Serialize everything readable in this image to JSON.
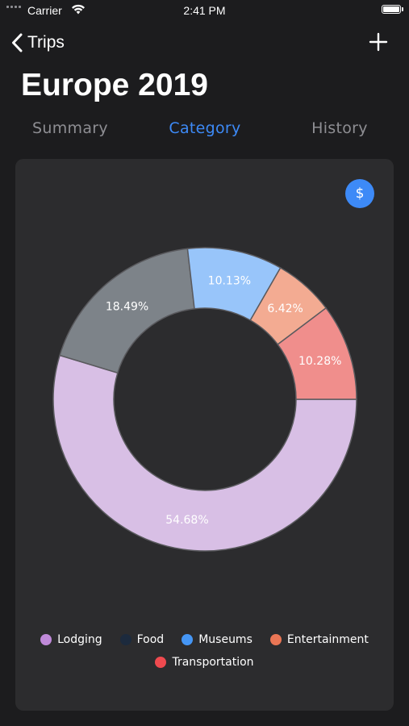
{
  "status_bar": {
    "carrier": "Carrier",
    "time": "2:41 PM"
  },
  "nav": {
    "back_label": "Trips",
    "add_icon": "plus-icon",
    "back_icon": "chevron-left-icon"
  },
  "page": {
    "title": "Europe 2019"
  },
  "tabs": [
    {
      "label": "Summary",
      "active": false
    },
    {
      "label": "Category",
      "active": true
    },
    {
      "label": "History",
      "active": false
    }
  ],
  "currency_button": {
    "label": "$"
  },
  "colors": {
    "background": "#1c1c1e",
    "card": "#2c2c2e",
    "accent": "#3d8af7"
  },
  "chart_data": {
    "type": "pie",
    "donut": true,
    "slices": [
      {
        "label": "Lodging",
        "value": 54.68,
        "display": "54.68%",
        "color": "#d8bfe5"
      },
      {
        "label": "Food",
        "value": 18.49,
        "display": "18.49%",
        "color": "#7d8389"
      },
      {
        "label": "Museums",
        "value": 10.13,
        "display": "10.13%",
        "color": "#98c5fa"
      },
      {
        "label": "Entertainment",
        "value": 6.42,
        "display": "6.42%",
        "color": "#f3ab92"
      },
      {
        "label": "Transportation",
        "value": 10.28,
        "display": "10.28%",
        "color": "#f08e8c"
      }
    ]
  },
  "legend": [
    {
      "label": "Lodging",
      "color": "#c08ad9"
    },
    {
      "label": "Food",
      "color": "#1c2a3d"
    },
    {
      "label": "Museums",
      "color": "#4596f5"
    },
    {
      "label": "Entertainment",
      "color": "#ea7655"
    },
    {
      "label": "Transportation",
      "color": "#ef4a4f"
    }
  ]
}
